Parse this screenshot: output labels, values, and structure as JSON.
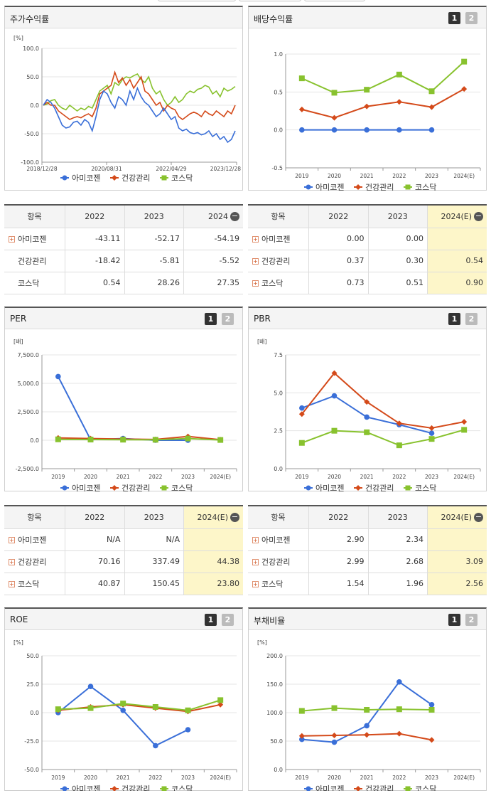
{
  "legend": [
    "아미코젠",
    "건강관리",
    "코스닥"
  ],
  "colors": {
    "s1": "#3a6fd8",
    "s2": "#d44a1a",
    "s3": "#88c22e"
  },
  "panels": {
    "stock": {
      "title": "주가수익률",
      "unit": "[%]"
    },
    "div": {
      "title": "배당수익률"
    },
    "per": {
      "title": "PER",
      "unit": "[배]"
    },
    "pbr": {
      "title": "PBR",
      "unit": "[배]"
    },
    "roe": {
      "title": "ROE",
      "unit": "[%]"
    },
    "debt": {
      "title": "부채비율",
      "unit": "[%]"
    }
  },
  "pager": [
    "1",
    "2"
  ],
  "tables": {
    "t1": {
      "headers": [
        "항목",
        "2022",
        "2023",
        "2024"
      ],
      "rows": [
        {
          "name": "아미코젠",
          "plus": true,
          "vals": [
            "-43.11",
            "-52.17",
            "-54.19"
          ]
        },
        {
          "name": "건강관리",
          "plus": false,
          "vals": [
            "-18.42",
            "-5.81",
            "-5.52"
          ]
        },
        {
          "name": "코스닥",
          "plus": false,
          "vals": [
            "0.54",
            "28.26",
            "27.35"
          ]
        }
      ]
    },
    "t2": {
      "headers": [
        "항목",
        "2022",
        "2023",
        "2024(E)"
      ],
      "rows": [
        {
          "name": "아미코젠",
          "plus": true,
          "vals": [
            "0.00",
            "0.00",
            ""
          ]
        },
        {
          "name": "건강관리",
          "plus": true,
          "vals": [
            "0.37",
            "0.30",
            "0.54"
          ]
        },
        {
          "name": "코스닥",
          "plus": true,
          "vals": [
            "0.73",
            "0.51",
            "0.90"
          ]
        }
      ]
    },
    "t3": {
      "headers": [
        "항목",
        "2022",
        "2023",
        "2024(E)"
      ],
      "rows": [
        {
          "name": "아미코젠",
          "plus": true,
          "vals": [
            "N/A",
            "N/A",
            ""
          ]
        },
        {
          "name": "건강관리",
          "plus": true,
          "vals": [
            "70.16",
            "337.49",
            "44.38"
          ]
        },
        {
          "name": "코스닥",
          "plus": true,
          "vals": [
            "40.87",
            "150.45",
            "23.80"
          ]
        }
      ]
    },
    "t4": {
      "headers": [
        "항목",
        "2022",
        "2023",
        "2024(E)"
      ],
      "rows": [
        {
          "name": "아미코젠",
          "plus": true,
          "vals": [
            "2.90",
            "2.34",
            ""
          ]
        },
        {
          "name": "건강관리",
          "plus": true,
          "vals": [
            "2.99",
            "2.68",
            "3.09"
          ]
        },
        {
          "name": "코스닥",
          "plus": true,
          "vals": [
            "1.54",
            "1.96",
            "2.56"
          ]
        }
      ]
    }
  },
  "chart_data": [
    {
      "id": "stock",
      "type": "line",
      "x_ticks": [
        "2018/12/28",
        "2020/08/31",
        "2022/04/29",
        "2023/12/28"
      ],
      "y_ticks": [
        "100.0",
        "50.0",
        "0.0",
        "-50.0",
        "-100.0"
      ],
      "ylim": [
        -100,
        100
      ],
      "series": [
        {
          "name": "아미코젠",
          "values": [
            0,
            10,
            5,
            -5,
            -20,
            -35,
            -40,
            -38,
            -30,
            -28,
            -35,
            -25,
            -30,
            -45,
            -20,
            10,
            25,
            20,
            5,
            -5,
            15,
            10,
            0,
            25,
            10,
            30,
            15,
            5,
            0,
            -10,
            -20,
            -15,
            -5,
            -15,
            -25,
            -20,
            -40,
            -45,
            -42,
            -48,
            -50,
            -48,
            -52,
            -50,
            -45,
            -55,
            -50,
            -60,
            -55,
            -65,
            -60,
            -45
          ]
        },
        {
          "name": "건강관리",
          "values": [
            0,
            5,
            0,
            0,
            -10,
            -15,
            -20,
            -25,
            -22,
            -20,
            -22,
            -18,
            -15,
            -20,
            -5,
            20,
            25,
            30,
            35,
            58,
            40,
            48,
            35,
            45,
            30,
            40,
            50,
            25,
            20,
            10,
            0,
            5,
            -10,
            0,
            -5,
            -8,
            -20,
            -25,
            -20,
            -15,
            -12,
            -15,
            -20,
            -10,
            -15,
            -18,
            -10,
            -15,
            -20,
            -10,
            -15,
            0
          ]
        },
        {
          "name": "코스닥",
          "values": [
            0,
            2,
            8,
            10,
            0,
            -5,
            -8,
            0,
            -5,
            -10,
            -5,
            -8,
            -2,
            -5,
            10,
            25,
            30,
            35,
            20,
            40,
            35,
            45,
            50,
            48,
            52,
            55,
            45,
            40,
            50,
            30,
            20,
            25,
            10,
            0,
            5,
            15,
            5,
            10,
            20,
            25,
            22,
            28,
            30,
            35,
            32,
            20,
            25,
            15,
            30,
            25,
            28,
            33
          ]
        }
      ]
    },
    {
      "id": "div",
      "type": "line",
      "categories": [
        "2019",
        "2020",
        "2021",
        "2022",
        "2023",
        "2024(E)"
      ],
      "y_ticks": [
        "1.0",
        "0.5",
        "0.0",
        "-0.5"
      ],
      "ylim": [
        -0.5,
        1.0
      ],
      "series": [
        {
          "name": "아미코젠",
          "values": [
            0.0,
            0.0,
            0.0,
            0.0,
            0.0,
            null
          ]
        },
        {
          "name": "건강관리",
          "values": [
            0.27,
            0.16,
            0.31,
            0.37,
            0.3,
            0.54
          ]
        },
        {
          "name": "코스닥",
          "values": [
            0.68,
            0.49,
            0.53,
            0.73,
            0.51,
            0.9
          ]
        }
      ]
    },
    {
      "id": "per",
      "type": "line",
      "categories": [
        "2019",
        "2020",
        "2021",
        "2022",
        "2023",
        "2024(E)"
      ],
      "y_ticks": [
        "7,500.0",
        "5,000.0",
        "2,500.0",
        "0.0",
        "-2,500.0"
      ],
      "ylim": [
        -2500,
        7500
      ],
      "series": [
        {
          "name": "아미코젠",
          "values": [
            5600,
            50,
            150,
            0,
            0,
            null
          ]
        },
        {
          "name": "건강관리",
          "values": [
            200,
            150,
            100,
            70,
            337,
            44
          ]
        },
        {
          "name": "코스닥",
          "values": [
            80,
            60,
            50,
            41,
            150,
            24
          ]
        }
      ]
    },
    {
      "id": "pbr",
      "type": "line",
      "categories": [
        "2019",
        "2020",
        "2021",
        "2022",
        "2023",
        "2024(E)"
      ],
      "y_ticks": [
        "7.5",
        "5.0",
        "2.5",
        "0.0"
      ],
      "ylim": [
        0,
        7.5
      ],
      "series": [
        {
          "name": "아미코젠",
          "values": [
            4.0,
            4.8,
            3.4,
            2.9,
            2.34,
            null
          ]
        },
        {
          "name": "건강관리",
          "values": [
            3.6,
            6.3,
            4.4,
            2.99,
            2.68,
            3.09
          ]
        },
        {
          "name": "코스닥",
          "values": [
            1.7,
            2.5,
            2.4,
            1.54,
            1.96,
            2.56
          ]
        }
      ]
    },
    {
      "id": "roe",
      "type": "line",
      "categories": [
        "2019",
        "2020",
        "2021",
        "2022",
        "2023",
        "2024(E)"
      ],
      "y_ticks": [
        "50.0",
        "25.0",
        "0.0",
        "-25.0",
        "-50.0"
      ],
      "ylim": [
        -50,
        50
      ],
      "series": [
        {
          "name": "아미코젠",
          "values": [
            0,
            23,
            2,
            -29,
            -15,
            null
          ]
        },
        {
          "name": "건강관리",
          "values": [
            2,
            5,
            7,
            4,
            1,
            7
          ]
        },
        {
          "name": "코스닥",
          "values": [
            3,
            4,
            8,
            5,
            2,
            11
          ]
        }
      ]
    },
    {
      "id": "debt",
      "type": "line",
      "categories": [
        "2019",
        "2020",
        "2021",
        "2022",
        "2023",
        "2024(E)"
      ],
      "y_ticks": [
        "200.0",
        "150.0",
        "100.0",
        "50.0",
        "0.0"
      ],
      "ylim": [
        0,
        200
      ],
      "series": [
        {
          "name": "아미코젠",
          "values": [
            53,
            48,
            77,
            154,
            114,
            null
          ]
        },
        {
          "name": "건강관리",
          "values": [
            59,
            60,
            61,
            63,
            52,
            null
          ]
        },
        {
          "name": "코스닥",
          "values": [
            103,
            108,
            105,
            106,
            105,
            null
          ]
        }
      ]
    }
  ]
}
